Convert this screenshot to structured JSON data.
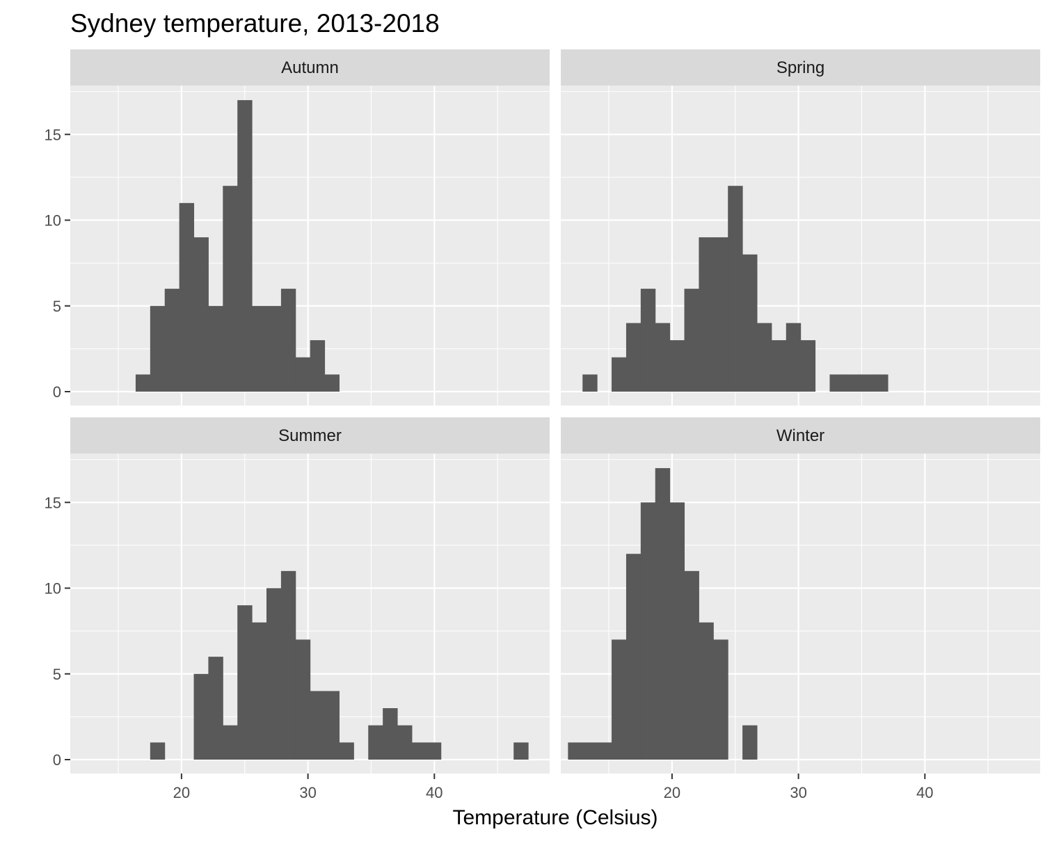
{
  "chart_data": {
    "type": "bar",
    "title": "Sydney temperature, 2013-2018",
    "xlabel": "Temperature (Celsius)",
    "ylabel": "",
    "x_range": [
      11.2,
      47.6
    ],
    "y_range": [
      0,
      17.8
    ],
    "x_ticks": [
      20,
      30,
      40
    ],
    "y_ticks": [
      0,
      5,
      10,
      15
    ],
    "bin_width": 1.15,
    "bin_start": 11.77,
    "colors": {
      "bar": "#595959",
      "panel_background": "#ebebeb",
      "strip_background": "#d9d9d9",
      "grid": "#ffffff"
    },
    "facets": [
      {
        "name": "Autumn",
        "counts": [
          0,
          0,
          0,
          0,
          1,
          5,
          6,
          11,
          9,
          5,
          12,
          17,
          5,
          5,
          6,
          2,
          3,
          1,
          0,
          0,
          0,
          0,
          0,
          0,
          0,
          0,
          0,
          0,
          0,
          0,
          0
        ]
      },
      {
        "name": "Spring",
        "counts": [
          0,
          1,
          0,
          2,
          4,
          6,
          4,
          3,
          6,
          9,
          9,
          12,
          8,
          4,
          3,
          4,
          3,
          0,
          1,
          1,
          1,
          1,
          0,
          0,
          0,
          0,
          0,
          0,
          0,
          0,
          0
        ]
      },
      {
        "name": "Summer",
        "counts": [
          0,
          0,
          0,
          0,
          0,
          1,
          0,
          0,
          5,
          6,
          2,
          9,
          8,
          10,
          11,
          7,
          4,
          4,
          1,
          0,
          2,
          3,
          2,
          1,
          1,
          0,
          0,
          0,
          0,
          0,
          1
        ]
      },
      {
        "name": "Winter",
        "counts": [
          1,
          1,
          1,
          7,
          12,
          15,
          17,
          15,
          11,
          8,
          7,
          0,
          2,
          0,
          0,
          0,
          0,
          0,
          0,
          0,
          0,
          0,
          0,
          0,
          0,
          0,
          0,
          0,
          0,
          0,
          0
        ]
      }
    ]
  }
}
